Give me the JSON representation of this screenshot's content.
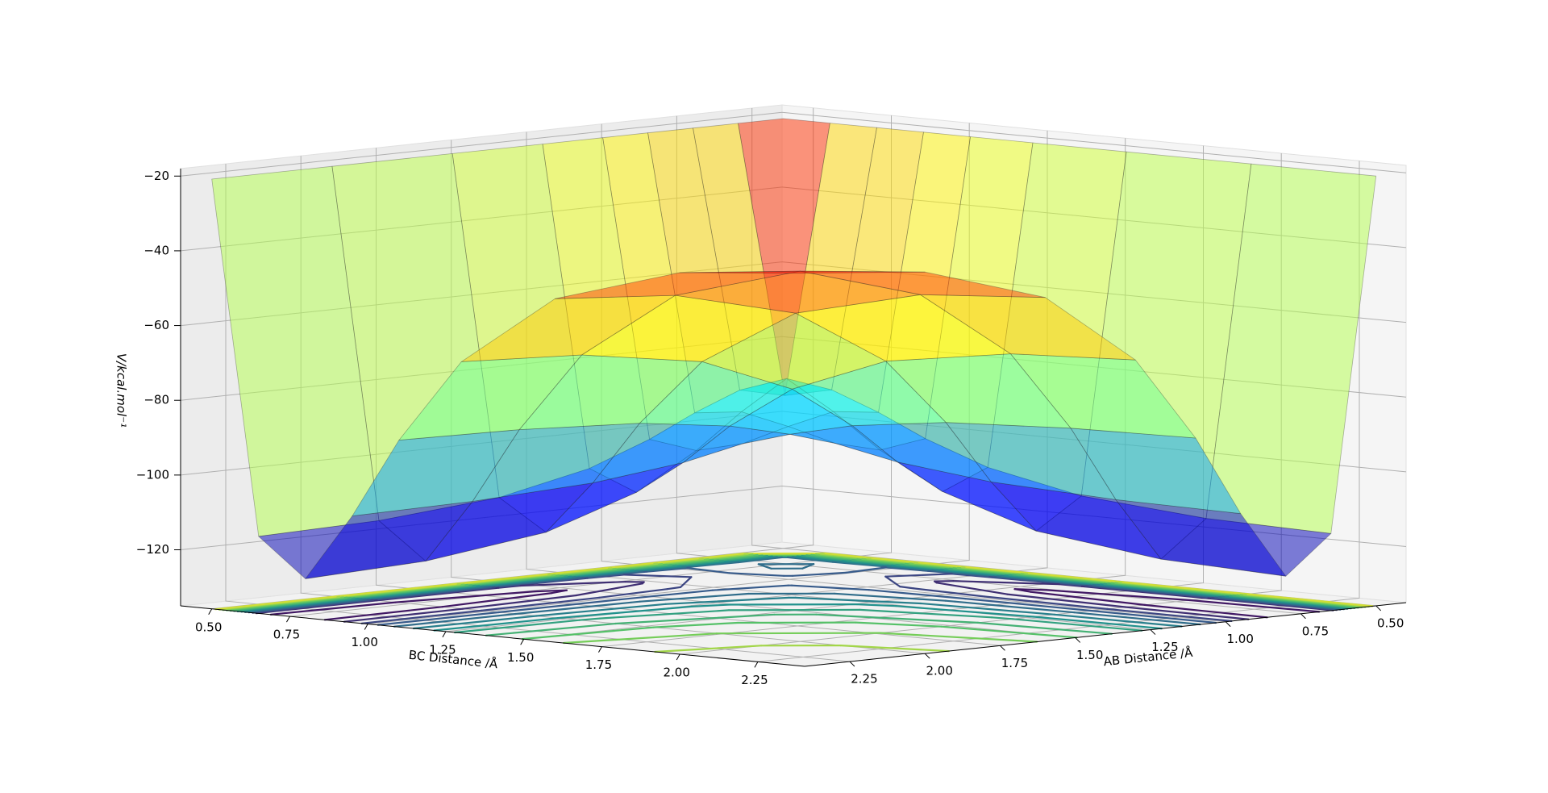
{
  "chart_data": {
    "type": "surface",
    "xlabel": "AB Distance /Å",
    "ylabel": "BC Distance /Å",
    "zlabel": "V/kcal.mol⁻¹",
    "colormap": "jet",
    "contour_colormap": "viridis",
    "x": [
      0.5,
      0.65,
      0.8,
      0.95,
      1.1,
      1.3,
      1.6,
      2.0,
      2.4
    ],
    "y": [
      0.5,
      0.65,
      0.8,
      0.95,
      1.1,
      1.3,
      1.6,
      2.0,
      2.4
    ],
    "z": [
      [
        -20,
        -20,
        -20,
        -20,
        -20,
        -20,
        -20,
        -20,
        -20
      ],
      [
        -20,
        -91.6,
        -88.9,
        -93.7,
        -99.5,
        -105.6,
        -110.8,
        -113.6,
        -114.4
      ],
      [
        -20,
        -88.9,
        -84.6,
        -92.2,
        -101.3,
        -110.8,
        -118.9,
        -123.2,
        -124.5
      ],
      [
        -20,
        -93.7,
        -92.2,
        -94.9,
        -98.2,
        -101.6,
        -104.5,
        -106.0,
        -106.5
      ],
      [
        -20,
        -99.5,
        -101.3,
        -98.2,
        -94.5,
        -90.6,
        -87.3,
        -85.6,
        -85.0
      ],
      [
        -20,
        -105.6,
        -110.8,
        -101.6,
        -90.6,
        -79.1,
        -69.2,
        -64.0,
        -62.4
      ],
      [
        -20,
        -110.8,
        -118.9,
        -104.5,
        -87.3,
        -69.2,
        -53.8,
        -45.6,
        -43.1
      ],
      [
        -20,
        -113.6,
        -123.2,
        -106.0,
        -85.6,
        -64.0,
        -45.6,
        -35.9,
        -32.9
      ],
      [
        -20,
        -114.4,
        -124.5,
        -106.5,
        -85.0,
        -62.4,
        -43.1,
        -32.9,
        -29.8
      ]
    ],
    "xlim": [
      0.4,
      2.4
    ],
    "ylim": [
      0.4,
      2.4
    ],
    "zlim": [
      -135,
      -18
    ],
    "xticks": [
      {
        "value": 0.5,
        "label": "0.50"
      },
      {
        "value": 0.75,
        "label": "0.75"
      },
      {
        "value": 1,
        "label": "1.00"
      },
      {
        "value": 1.25,
        "label": "1.25"
      },
      {
        "value": 1.5,
        "label": "1.50"
      },
      {
        "value": 1.75,
        "label": "1.75"
      },
      {
        "value": 2,
        "label": "2.00"
      },
      {
        "value": 2.25,
        "label": "2.25"
      }
    ],
    "yticks": [
      {
        "value": 0.5,
        "label": "0.50"
      },
      {
        "value": 0.75,
        "label": "0.75"
      },
      {
        "value": 1,
        "label": "1.00"
      },
      {
        "value": 1.25,
        "label": "1.25"
      },
      {
        "value": 1.5,
        "label": "1.50"
      },
      {
        "value": 1.75,
        "label": "1.75"
      },
      {
        "value": 2,
        "label": "2.00"
      },
      {
        "value": 2.25,
        "label": "2.25"
      }
    ],
    "zticks": [
      {
        "value": -120,
        "label": "−120"
      },
      {
        "value": -100,
        "label": "−100"
      },
      {
        "value": -80,
        "label": "−80"
      },
      {
        "value": -60,
        "label": "−60"
      },
      {
        "value": -40,
        "label": "−40"
      },
      {
        "value": -20,
        "label": "−20"
      }
    ],
    "grid": true
  }
}
